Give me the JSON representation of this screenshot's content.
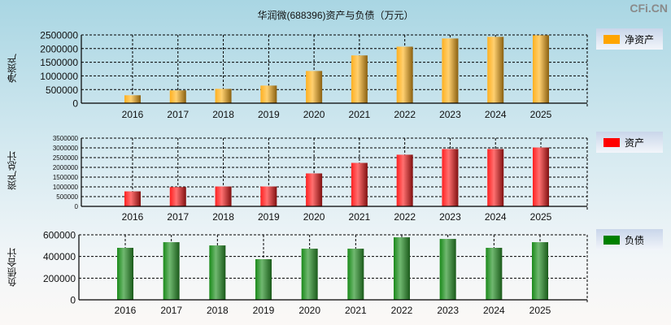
{
  "title": "华润微(688396)资产与负债（万元）",
  "watermark": "CFi.CN",
  "chart_data": [
    {
      "type": "bar",
      "ylabel": "净资产",
      "legend": "净资产",
      "color": "#ffa500",
      "categories": [
        "2016",
        "2017",
        "2018",
        "2019",
        "2020",
        "2021",
        "2022",
        "2023",
        "2024",
        "2025"
      ],
      "values": [
        290000,
        470000,
        525000,
        645000,
        1180000,
        1750000,
        2070000,
        2370000,
        2430000,
        2490000
      ],
      "ylim": [
        0,
        2500000
      ],
      "yticks": [
        "0",
        "500000",
        "1000000",
        "1500000",
        "2000000",
        "2500000"
      ],
      "grid": true,
      "legend_position": "right"
    },
    {
      "type": "bar",
      "ylabel": "资产总计",
      "legend": "资产",
      "color": "#ff0000",
      "categories": [
        "2016",
        "2017",
        "2018",
        "2019",
        "2020",
        "2021",
        "2022",
        "2023",
        "2024",
        "2025"
      ],
      "values": [
        770000,
        990000,
        1020000,
        1020000,
        1690000,
        2230000,
        2650000,
        2940000,
        2940000,
        3020000
      ],
      "ylim": [
        0,
        3500000
      ],
      "yticks": [
        "0",
        "500000",
        "1000000",
        "1500000",
        "2000000",
        "2500000",
        "3000000",
        "3500000"
      ],
      "grid": true,
      "legend_position": "right"
    },
    {
      "type": "bar",
      "ylabel": "负债合计",
      "legend": "负债",
      "color": "#008000",
      "categories": [
        "2016",
        "2017",
        "2018",
        "2019",
        "2020",
        "2021",
        "2022",
        "2023",
        "2024",
        "2025"
      ],
      "values": [
        480000,
        532000,
        502000,
        375000,
        472000,
        472000,
        577000,
        562000,
        480000,
        532000
      ],
      "ylim": [
        0,
        600000
      ],
      "yticks": [
        "0",
        "200000",
        "400000",
        "600000"
      ],
      "grid": true,
      "legend_position": "right"
    }
  ]
}
